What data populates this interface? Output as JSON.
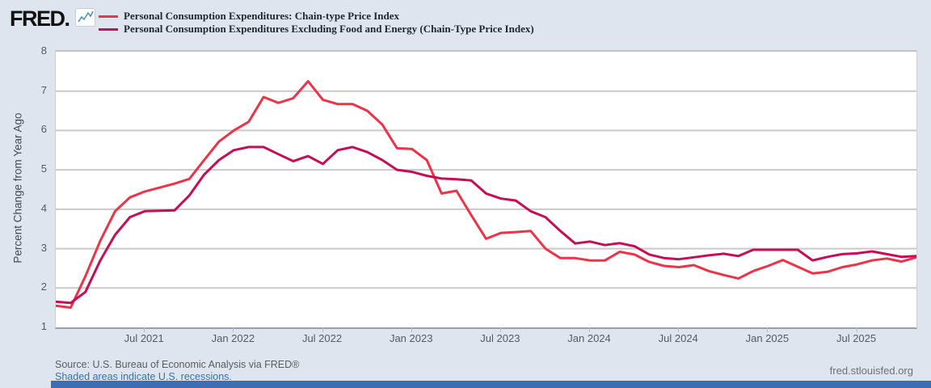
{
  "header": {
    "logo": "FRED",
    "logo_mark": "."
  },
  "legend": [
    {
      "label": "Personal Consumption Expenditures: Chain-type Price Index",
      "color": "#ee3348"
    },
    {
      "label": "Personal Consumption Expenditures Excluding Food and Energy (Chain-Type Price Index)",
      "color": "#c60d56"
    }
  ],
  "y_axis": {
    "title": "Percent Change from Year Ago",
    "ticks": [
      8,
      7,
      6,
      5,
      4,
      3,
      2,
      1
    ]
  },
  "x_axis": {
    "ticks": [
      {
        "label": "Jul 2021",
        "month_index": 6
      },
      {
        "label": "Jan 2022",
        "month_index": 12
      },
      {
        "label": "Jul 2022",
        "month_index": 18
      },
      {
        "label": "Jan 2023",
        "month_index": 24
      },
      {
        "label": "Jul 2023",
        "month_index": 30
      },
      {
        "label": "Jan 2024",
        "month_index": 36
      },
      {
        "label": "Jul 2024",
        "month_index": 42
      },
      {
        "label": "Jan 2025",
        "month_index": 48
      },
      {
        "label": "Jul 2025",
        "month_index": 54
      }
    ]
  },
  "footer": {
    "source": "Source: U.S. Bureau of Economic Analysis via FRED®",
    "recession_note": "Shaded areas indicate U.S. recessions.",
    "site": "fred.stlouisfed.org"
  },
  "chart_data": {
    "type": "line",
    "frequency": "monthly",
    "x_start": "2021-01",
    "x_end": "2025-11",
    "ylabel": "Percent Change from Year Ago",
    "ylim": [
      1,
      8
    ],
    "grid": "horizontal",
    "legend_position": "top-left",
    "plot_background": "#ffffff",
    "page_background": "#dee5ee",
    "series": [
      {
        "name": "Personal Consumption Expenditures: Chain-type Price Index",
        "color": "#ee3348",
        "values": [
          1.55,
          1.5,
          2.3,
          3.2,
          3.95,
          4.3,
          4.45,
          4.55,
          4.65,
          4.77,
          5.25,
          5.72,
          6.0,
          6.22,
          6.85,
          6.7,
          6.82,
          7.25,
          6.78,
          6.67,
          6.67,
          6.5,
          6.15,
          5.55,
          5.53,
          5.25,
          4.4,
          4.47,
          3.85,
          3.25,
          3.4,
          3.42,
          3.45,
          3.0,
          2.76,
          2.76,
          2.7,
          2.7,
          2.92,
          2.85,
          2.66,
          2.56,
          2.53,
          2.58,
          2.43,
          2.33,
          2.24,
          2.43,
          2.56,
          2.71,
          2.54,
          2.37,
          2.41,
          2.53,
          2.6,
          2.7,
          2.75,
          2.67,
          2.78
        ]
      },
      {
        "name": "Personal Consumption Expenditures Excluding Food and Energy (Chain-Type Price Index)",
        "color": "#c60d56",
        "values": [
          1.65,
          1.62,
          1.9,
          2.7,
          3.35,
          3.8,
          3.95,
          3.96,
          3.97,
          4.35,
          4.88,
          5.25,
          5.5,
          5.58,
          5.58,
          5.4,
          5.22,
          5.35,
          5.15,
          5.5,
          5.58,
          5.45,
          5.25,
          5.0,
          4.95,
          4.85,
          4.78,
          4.76,
          4.73,
          4.4,
          4.27,
          4.22,
          3.95,
          3.8,
          3.45,
          3.13,
          3.18,
          3.09,
          3.14,
          3.06,
          2.85,
          2.76,
          2.73,
          2.78,
          2.83,
          2.87,
          2.81,
          2.97,
          2.97,
          2.97,
          2.97,
          2.7,
          2.79,
          2.86,
          2.88,
          2.93,
          2.86,
          2.79,
          2.81
        ]
      }
    ]
  }
}
